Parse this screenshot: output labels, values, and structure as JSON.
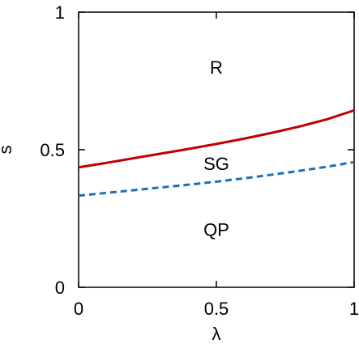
{
  "chart_data": {
    "type": "line",
    "xlabel": "λ",
    "ylabel": "s",
    "xlim": [
      0,
      1
    ],
    "ylim": [
      0,
      1
    ],
    "x_ticks": [
      {
        "value": 0,
        "label": "0"
      },
      {
        "value": 0.5,
        "label": "0.5"
      },
      {
        "value": 1,
        "label": "1"
      }
    ],
    "y_ticks": [
      {
        "value": 0,
        "label": "0"
      },
      {
        "value": 0.5,
        "label": "0.5"
      },
      {
        "value": 1,
        "label": "1"
      }
    ],
    "grid": false,
    "series": [
      {
        "style": "solid",
        "color": "#c00000",
        "x": [
          0,
          0.1,
          0.2,
          0.3,
          0.4,
          0.5,
          0.6,
          0.7,
          0.8,
          0.9,
          1.0
        ],
        "y": [
          0.436,
          0.452,
          0.469,
          0.486,
          0.503,
          0.521,
          0.54,
          0.561,
          0.584,
          0.61,
          0.643
        ]
      },
      {
        "style": "dashed",
        "color": "#1e6fb5",
        "x": [
          0,
          0.1,
          0.2,
          0.3,
          0.4,
          0.5,
          0.6,
          0.7,
          0.8,
          0.9,
          1.0
        ],
        "y": [
          0.333,
          0.343,
          0.353,
          0.363,
          0.373,
          0.384,
          0.396,
          0.409,
          0.423,
          0.438,
          0.455
        ]
      }
    ],
    "annotations": [
      {
        "text": "R",
        "x": 0.5,
        "y": 0.8
      },
      {
        "text": "SG",
        "x": 0.5,
        "y": 0.45
      },
      {
        "text": "QP",
        "x": 0.5,
        "y": 0.21
      }
    ]
  }
}
